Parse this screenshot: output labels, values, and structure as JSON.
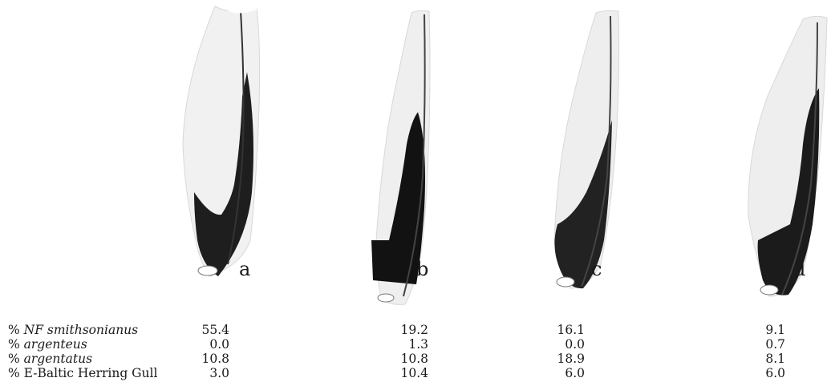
{
  "panels": [
    {
      "letter": "a"
    },
    {
      "letter": "b"
    },
    {
      "letter": "c"
    },
    {
      "letter": "d"
    }
  ],
  "table": {
    "rows": [
      {
        "prefix": "% ",
        "italic": "NF ",
        "italic_name": "smithsonianus",
        "plain_suffix": "",
        "values": [
          "55.4",
          "19.2",
          "16.1",
          "9.1"
        ]
      },
      {
        "prefix": "% ",
        "italic": "",
        "italic_name": "argenteus",
        "plain_suffix": "",
        "values": [
          "0.0",
          "1.3",
          "0.0",
          "0.7"
        ]
      },
      {
        "prefix": "% ",
        "italic": "",
        "italic_name": "argentatus",
        "plain_suffix": "",
        "values": [
          "10.8",
          "10.8",
          "18.9",
          "8.1"
        ]
      },
      {
        "prefix": "% E-Baltic Herring Gull",
        "italic": "",
        "italic_name": "",
        "plain_suffix": "",
        "values": [
          "3.0",
          "10.4",
          "6.0",
          "6.0"
        ]
      }
    ]
  }
}
